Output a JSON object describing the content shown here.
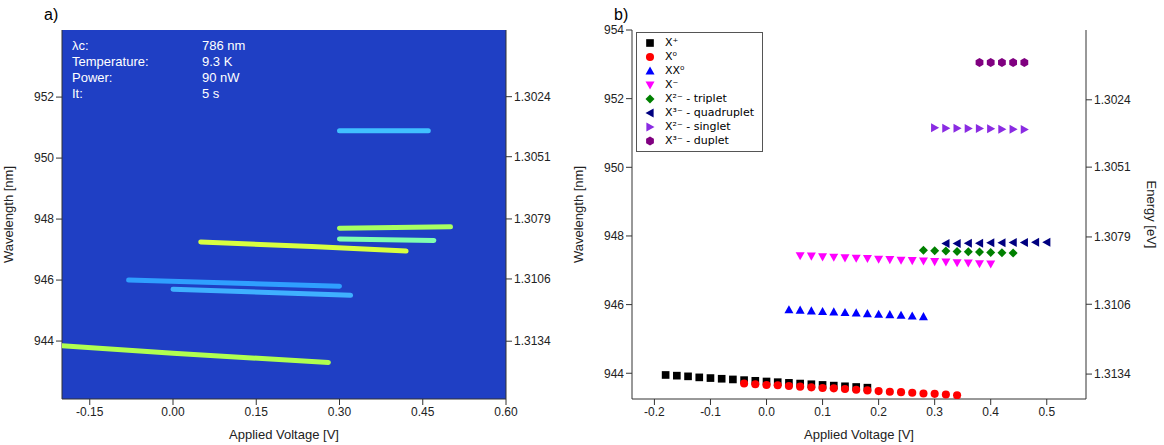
{
  "chart_data": [
    {
      "type": "line",
      "panel_label": "a)",
      "x_label": "Applied Voltage [V]",
      "y_label": "Wavelength [nm]",
      "xlim": [
        -0.2,
        0.6
      ],
      "xticks": [
        -0.15,
        {
          "value": 0,
          "label": "0.00"
        },
        0.15,
        {
          "value": 0.3,
          "label": "0.30"
        },
        0.45,
        {
          "value": 0.6,
          "label": "0.60"
        }
      ],
      "ylim": [
        942.1,
        954.2
      ],
      "yticks": [
        944,
        946,
        948,
        950,
        952
      ],
      "y2lim": [
        1.316,
        1.2994
      ],
      "y2ticks": [
        1.3024,
        1.3051,
        1.3079,
        1.3106,
        1.3134
      ],
      "annotations": [
        {
          "label": "λc:",
          "text": "786 nm"
        },
        {
          "label": "Temperature:",
          "text": "9.3 K"
        },
        {
          "label": "Power:",
          "text": "90 nW"
        },
        {
          "label": "It:",
          "text": "5 s"
        }
      ],
      "series": [
        {
          "color": "#b0ff50",
          "x": [
            -0.2,
            0.0,
            0.28
          ],
          "values": [
            943.85,
            943.6,
            943.3
          ]
        },
        {
          "color": "#2f9fff",
          "x": [
            -0.08,
            0.3
          ],
          "values": [
            946.0,
            945.8
          ]
        },
        {
          "color": "#3fb0ff",
          "x": [
            0.0,
            0.32
          ],
          "values": [
            945.7,
            945.5
          ]
        },
        {
          "color": "#d8ff40",
          "x": [
            0.05,
            0.25,
            0.42
          ],
          "values": [
            947.25,
            947.1,
            946.95
          ]
        },
        {
          "color": "#80ffb0",
          "x": [
            0.3,
            0.47
          ],
          "values": [
            947.35,
            947.3
          ]
        },
        {
          "color": "#a8ff60",
          "x": [
            0.3,
            0.5
          ],
          "values": [
            947.7,
            947.75
          ]
        },
        {
          "color": "#40c0ff",
          "x": [
            0.3,
            0.46
          ],
          "values": [
            950.9,
            950.9
          ]
        }
      ]
    },
    {
      "type": "scatter",
      "panel_label": "b)",
      "x_label": "Applied Voltage [V]",
      "y_label": "Wavelength [nm]",
      "y2_label": "Energy [eV]",
      "xlim": [
        -0.24,
        0.57
      ],
      "xticks": [
        -0.2,
        -0.1,
        {
          "value": 0,
          "label": "0.0"
        },
        0.1,
        0.2,
        0.3,
        0.4,
        0.5
      ],
      "ylim": [
        943.25,
        954
      ],
      "yticks": [
        944,
        946,
        948,
        950,
        952,
        954
      ],
      "y2lim": [
        1.3144,
        1.2996
      ],
      "y2ticks": [
        1.3024,
        1.3051,
        1.3079,
        1.3106,
        1.3134
      ],
      "legend": "upper left",
      "series": [
        {
          "name": "X⁺",
          "color": "#000000",
          "marker": "square",
          "x": [
            -0.18,
            -0.16,
            -0.14,
            -0.12,
            -0.1,
            -0.08,
            -0.06,
            -0.04,
            -0.02,
            0.0,
            0.02,
            0.04,
            0.06,
            0.08,
            0.1,
            0.12,
            0.14,
            0.16,
            0.18
          ],
          "values": [
            943.95,
            943.93,
            943.91,
            943.88,
            943.86,
            943.84,
            943.82,
            943.8,
            943.78,
            943.76,
            943.74,
            943.72,
            943.7,
            943.68,
            943.66,
            943.64,
            943.62,
            943.6,
            943.58
          ]
        },
        {
          "name": "X⁰",
          "color": "#ff0000",
          "marker": "circle",
          "x": [
            -0.04,
            -0.02,
            0.0,
            0.02,
            0.04,
            0.06,
            0.08,
            0.1,
            0.12,
            0.14,
            0.16,
            0.18,
            0.2,
            0.22,
            0.24,
            0.26,
            0.28,
            0.3,
            0.32,
            0.34
          ],
          "values": [
            943.7,
            943.68,
            943.66,
            943.65,
            943.63,
            943.61,
            943.59,
            943.57,
            943.56,
            943.54,
            943.52,
            943.5,
            943.48,
            943.46,
            943.45,
            943.43,
            943.41,
            943.4,
            943.38,
            943.36
          ]
        },
        {
          "name": "XX⁰",
          "color": "#0000ff",
          "marker": "triangle-up",
          "x": [
            0.04,
            0.06,
            0.08,
            0.1,
            0.12,
            0.14,
            0.16,
            0.18,
            0.2,
            0.22,
            0.24,
            0.26,
            0.28
          ],
          "values": [
            945.85,
            945.84,
            945.82,
            945.8,
            945.79,
            945.77,
            945.76,
            945.74,
            945.72,
            945.71,
            945.69,
            945.67,
            945.65
          ]
        },
        {
          "name": "X⁻",
          "color": "#ff00ff",
          "marker": "triangle-down",
          "x": [
            0.06,
            0.08,
            0.1,
            0.12,
            0.14,
            0.16,
            0.18,
            0.2,
            0.22,
            0.24,
            0.26,
            0.28,
            0.3,
            0.32,
            0.34,
            0.36,
            0.38,
            0.4
          ],
          "values": [
            947.42,
            947.41,
            947.39,
            947.38,
            947.36,
            947.35,
            947.34,
            947.32,
            947.31,
            947.29,
            947.28,
            947.27,
            947.25,
            947.24,
            947.22,
            947.21,
            947.19,
            947.18
          ]
        },
        {
          "name": "X²⁻ - triplet",
          "color": "#008000",
          "marker": "diamond",
          "x": [
            0.28,
            0.3,
            0.32,
            0.34,
            0.36,
            0.38,
            0.4,
            0.42,
            0.44
          ],
          "values": [
            947.58,
            947.57,
            947.56,
            947.55,
            947.54,
            947.53,
            947.52,
            947.51,
            947.5
          ]
        },
        {
          "name": "X³⁻ - quadruplet",
          "color": "#000080",
          "marker": "triangle-left",
          "x": [
            0.32,
            0.34,
            0.36,
            0.38,
            0.4,
            0.42,
            0.44,
            0.46,
            0.48,
            0.5
          ],
          "values": [
            947.78,
            947.78,
            947.79,
            947.79,
            947.8,
            947.8,
            947.81,
            947.81,
            947.82,
            947.82
          ]
        },
        {
          "name": "X²⁻ - singlet",
          "color": "#8a2be2",
          "marker": "triangle-right",
          "x": [
            0.3,
            0.32,
            0.34,
            0.36,
            0.38,
            0.4,
            0.42,
            0.44,
            0.46
          ],
          "values": [
            951.15,
            951.14,
            951.14,
            951.13,
            951.13,
            951.12,
            951.11,
            951.11,
            951.1
          ]
        },
        {
          "name": "X³⁻ - duplet",
          "color": "#800080",
          "marker": "hexagon",
          "x": [
            0.38,
            0.4,
            0.42,
            0.44,
            0.46
          ],
          "values": [
            953.05,
            953.05,
            953.05,
            953.05,
            953.05
          ]
        }
      ]
    }
  ]
}
